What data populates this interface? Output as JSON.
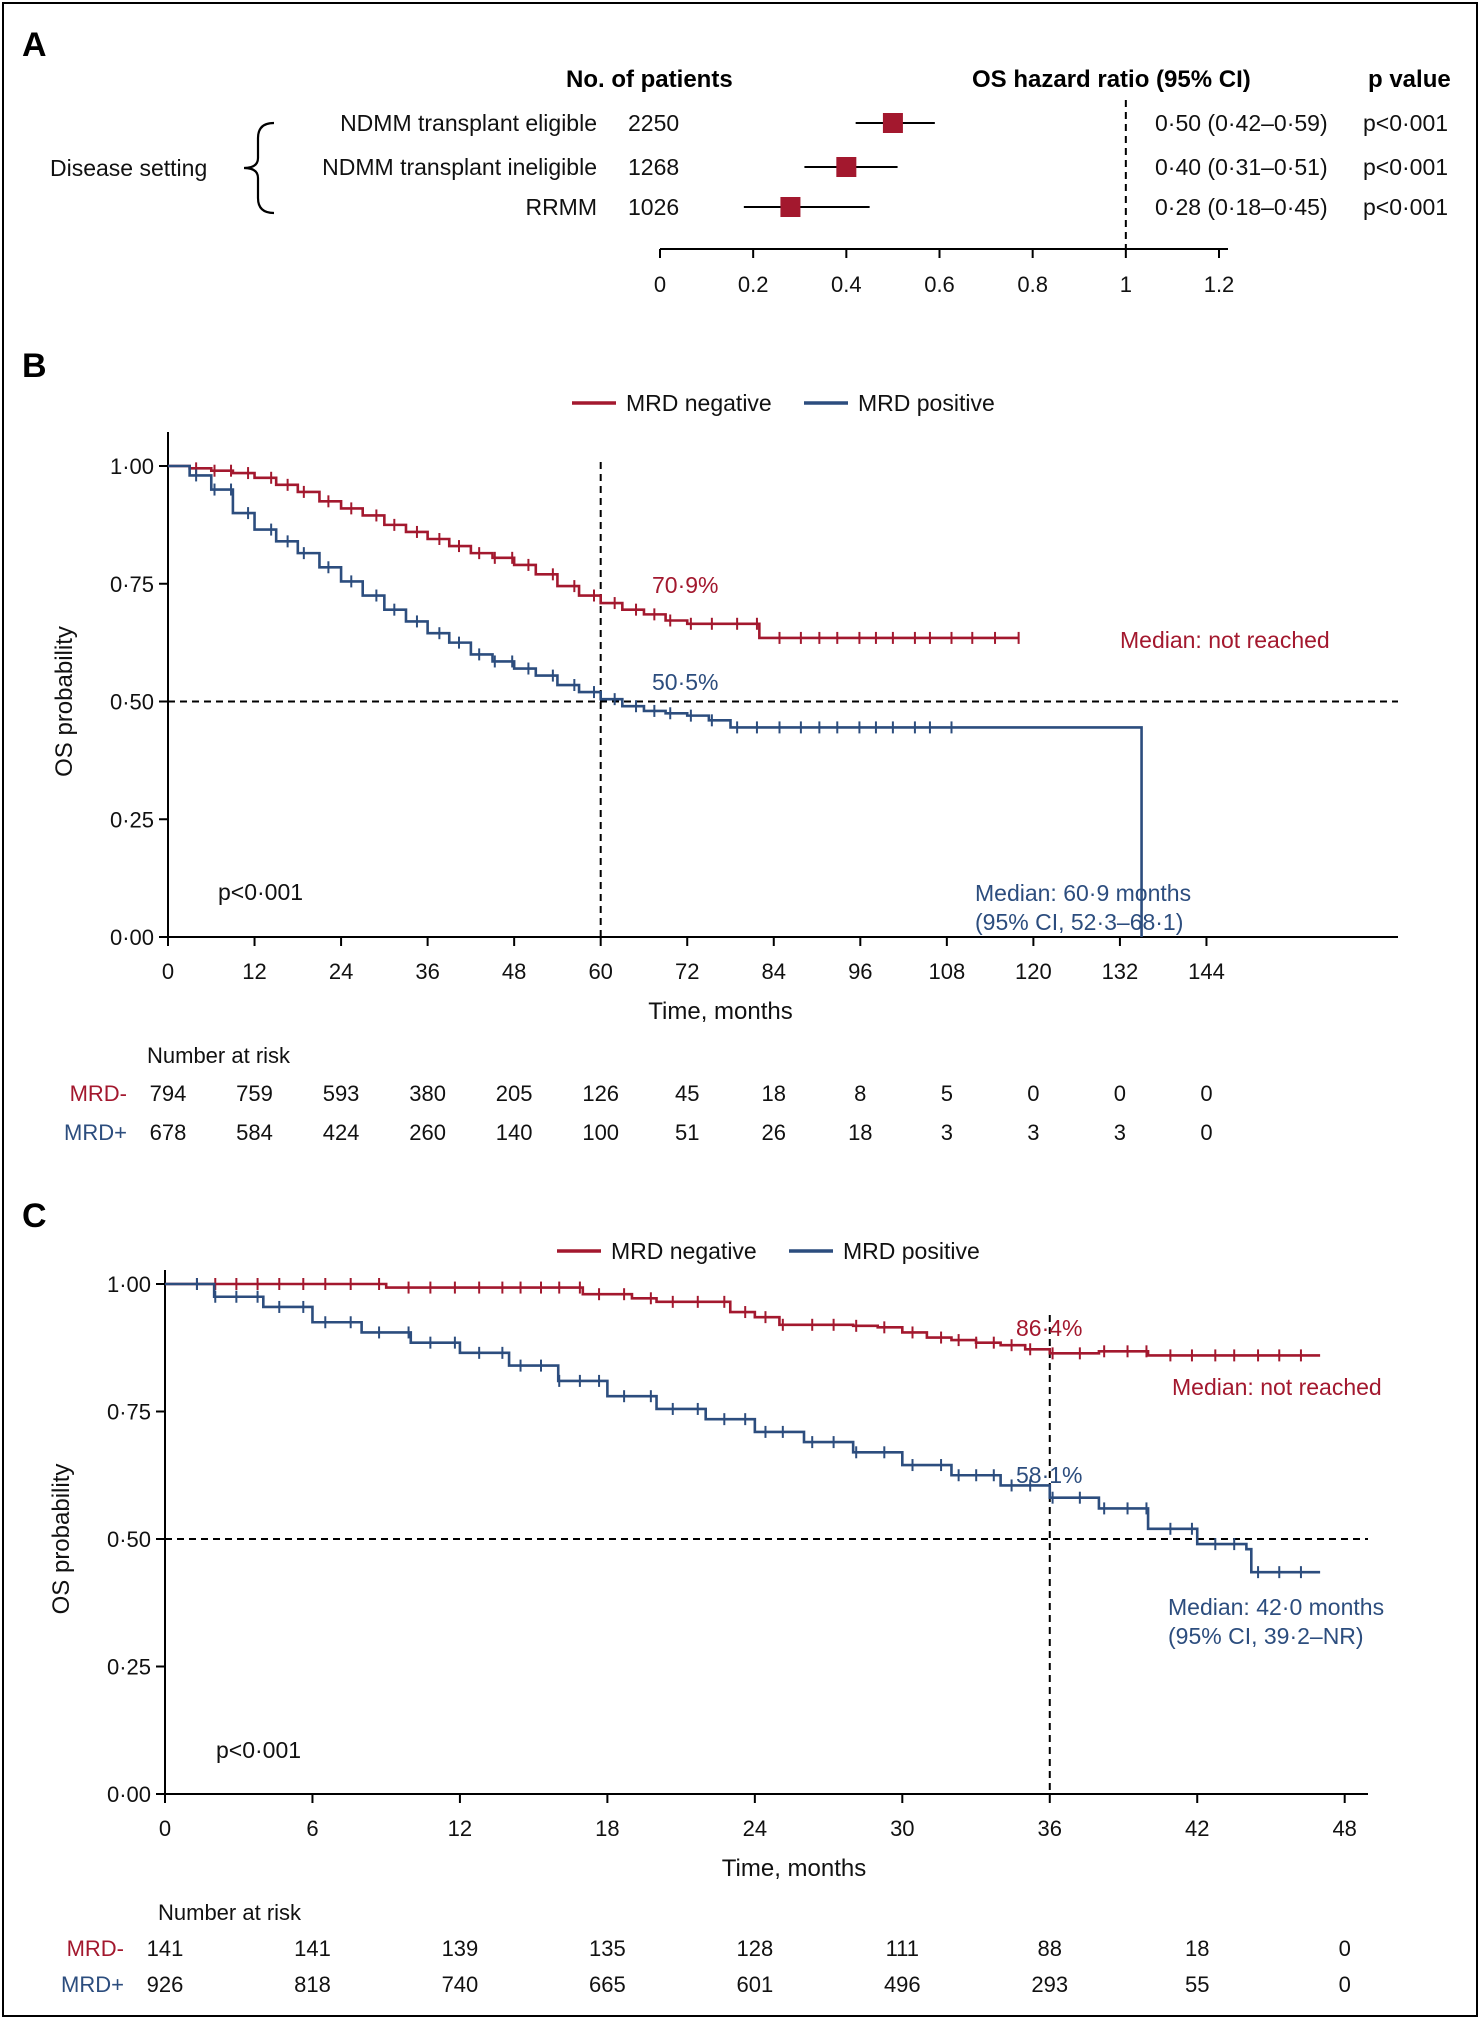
{
  "chart_data": [
    {
      "panel": "A",
      "type": "forest",
      "headers": {
        "patients": "No. of patients",
        "hr": "OS hazard ratio (95% CI)",
        "p": "p value"
      },
      "group_label": "Disease setting",
      "rows": [
        {
          "label": "NDMM transplant eligible",
          "n": "2250",
          "hr": 0.5,
          "lo": 0.42,
          "hi": 0.59,
          "hr_text": "0·50 (0·42–0·59)",
          "p": "p<0·001"
        },
        {
          "label": "NDMM transplant ineligible",
          "n": "1268",
          "hr": 0.4,
          "lo": 0.31,
          "hi": 0.51,
          "hr_text": "0·40 (0·31–0·51)",
          "p": "p<0·001"
        },
        {
          "label": "RRMM",
          "n": "1026",
          "hr": 0.28,
          "lo": 0.18,
          "hi": 0.45,
          "hr_text": "0·28 (0·18–0·45)",
          "p": "p<0·001"
        }
      ],
      "xticks": [
        0,
        0.2,
        0.4,
        0.6,
        0.8,
        1,
        1.2
      ],
      "xtick_labels": [
        "0",
        "0.2",
        "0.4",
        "0.6",
        "0.8",
        "1",
        "1.2"
      ],
      "xlim": [
        0,
        1.2
      ],
      "reference_line": 1
    },
    {
      "panel": "B",
      "type": "line",
      "legend": [
        "MRD negative",
        "MRD positive"
      ],
      "legend_position": "top-center",
      "xlabel": "Time, months",
      "ylabel": "OS probability",
      "xticks": [
        0,
        12,
        24,
        36,
        48,
        60,
        72,
        84,
        96,
        108,
        120,
        132,
        144
      ],
      "yticks": [
        0,
        0.25,
        0.5,
        0.75,
        1
      ],
      "ytick_labels": [
        "0·00",
        "0·25",
        "0·50",
        "0·75",
        "1·00"
      ],
      "xlim": [
        0,
        156
      ],
      "ylim": [
        0,
        1.05
      ],
      "vline_x": 60,
      "hline_y": 0.5,
      "series": [
        {
          "name": "MRD negative",
          "color": "#A3182E",
          "x": [
            0,
            3,
            6,
            9,
            12,
            15,
            18,
            21,
            24,
            27,
            30,
            33,
            36,
            39,
            42,
            45,
            48,
            51,
            54,
            57,
            60,
            63,
            66,
            69,
            72,
            75,
            78,
            81,
            82,
            84,
            90,
            96,
            102,
            108,
            114,
            118
          ],
          "y": [
            1.0,
            0.995,
            0.99,
            0.985,
            0.975,
            0.96,
            0.945,
            0.925,
            0.91,
            0.895,
            0.875,
            0.86,
            0.845,
            0.83,
            0.815,
            0.805,
            0.79,
            0.77,
            0.745,
            0.725,
            0.709,
            0.695,
            0.685,
            0.672,
            0.665,
            0.665,
            0.665,
            0.665,
            0.635,
            0.635,
            0.635,
            0.635,
            0.635,
            0.635,
            0.635,
            0.635
          ]
        },
        {
          "name": "MRD positive",
          "color": "#2C4D7E",
          "x": [
            0,
            3,
            6,
            9,
            12,
            15,
            18,
            21,
            24,
            27,
            30,
            33,
            36,
            39,
            42,
            45,
            48,
            51,
            54,
            57,
            60,
            63,
            66,
            69,
            72,
            75,
            78,
            81,
            84,
            90,
            96,
            102,
            108,
            114,
            120,
            126,
            132,
            135,
            135
          ],
          "y": [
            1.0,
            0.98,
            0.95,
            0.9,
            0.865,
            0.84,
            0.815,
            0.785,
            0.755,
            0.725,
            0.695,
            0.67,
            0.645,
            0.625,
            0.6,
            0.585,
            0.57,
            0.555,
            0.535,
            0.52,
            0.505,
            0.49,
            0.48,
            0.475,
            0.47,
            0.46,
            0.445,
            0.445,
            0.445,
            0.445,
            0.445,
            0.445,
            0.445,
            0.445,
            0.445,
            0.445,
            0.445,
            0.445,
            0.0
          ]
        }
      ],
      "annotations": {
        "neg_pct": "70·9%",
        "pos_pct": "50·5%",
        "neg_median": "Median: not reached",
        "pos_median_1": "Median: 60·9 months",
        "pos_median_2": "(95% CI, 52·3–68·1)",
        "pvalue": "p<0·001"
      },
      "risk_table": {
        "title": "Number at risk",
        "rows": [
          {
            "label": "MRD-",
            "values": [
              "794",
              "759",
              "593",
              "380",
              "205",
              "126",
              "45",
              "18",
              "8",
              "5",
              "0",
              "0",
              "0"
            ]
          },
          {
            "label": "MRD+",
            "values": [
              "678",
              "584",
              "424",
              "260",
              "140",
              "100",
              "51",
              "26",
              "18",
              "3",
              "3",
              "3",
              "0"
            ]
          }
        ]
      }
    },
    {
      "panel": "C",
      "type": "line",
      "legend": [
        "MRD negative",
        "MRD positive"
      ],
      "legend_position": "top-center",
      "xlabel": "Time, months",
      "ylabel": "OS probability",
      "xticks": [
        0,
        6,
        12,
        18,
        24,
        30,
        36,
        42,
        48
      ],
      "yticks": [
        0,
        0.25,
        0.5,
        0.75,
        1
      ],
      "ytick_labels": [
        "0·00",
        "0·25",
        "0·50",
        "0·75",
        "1·00"
      ],
      "xlim": [
        0,
        52
      ],
      "ylim": [
        0,
        1.0
      ],
      "vline_x": 36,
      "hline_y": 0.5,
      "series": [
        {
          "name": "MRD negative",
          "color": "#A3182E",
          "x": [
            0,
            8,
            9,
            16,
            17,
            19,
            20,
            22,
            23,
            24,
            25,
            28,
            29,
            30,
            31,
            32,
            33,
            34,
            35,
            36,
            38,
            39,
            40,
            42,
            44,
            46,
            47
          ],
          "y": [
            1.0,
            1.0,
            0.993,
            0.993,
            0.98,
            0.972,
            0.965,
            0.965,
            0.945,
            0.935,
            0.92,
            0.918,
            0.915,
            0.905,
            0.895,
            0.89,
            0.885,
            0.88,
            0.872,
            0.864,
            0.868,
            0.868,
            0.86,
            0.86,
            0.86,
            0.86,
            0.86
          ]
        },
        {
          "name": "MRD positive",
          "color": "#2C4D7E",
          "x": [
            0,
            2,
            4,
            6,
            8,
            10,
            12,
            14,
            16,
            18,
            20,
            22,
            24,
            26,
            28,
            30,
            32,
            34,
            36,
            38,
            40,
            42,
            44,
            44.2,
            47
          ],
          "y": [
            1.0,
            0.975,
            0.955,
            0.925,
            0.905,
            0.885,
            0.865,
            0.84,
            0.81,
            0.78,
            0.755,
            0.735,
            0.71,
            0.69,
            0.67,
            0.645,
            0.625,
            0.605,
            0.581,
            0.56,
            0.52,
            0.49,
            0.48,
            0.435,
            0.435
          ]
        }
      ],
      "annotations": {
        "neg_pct": "86·4%",
        "pos_pct": "58·1%",
        "neg_median": "Median: not reached",
        "pos_median_1": "Median: 42·0 months",
        "pos_median_2": "(95% CI, 39·2–NR)",
        "pvalue": "p<0·001"
      },
      "risk_table": {
        "title": "Number at risk",
        "rows": [
          {
            "label": "MRD-",
            "values": [
              "141",
              "141",
              "139",
              "135",
              "128",
              "111",
              "88",
              "18",
              "0"
            ]
          },
          {
            "label": "MRD+",
            "values": [
              "926",
              "818",
              "740",
              "665",
              "601",
              "496",
              "293",
              "55",
              "0"
            ]
          }
        ]
      }
    }
  ],
  "panels": {
    "a": "A",
    "b": "B",
    "c": "C"
  }
}
